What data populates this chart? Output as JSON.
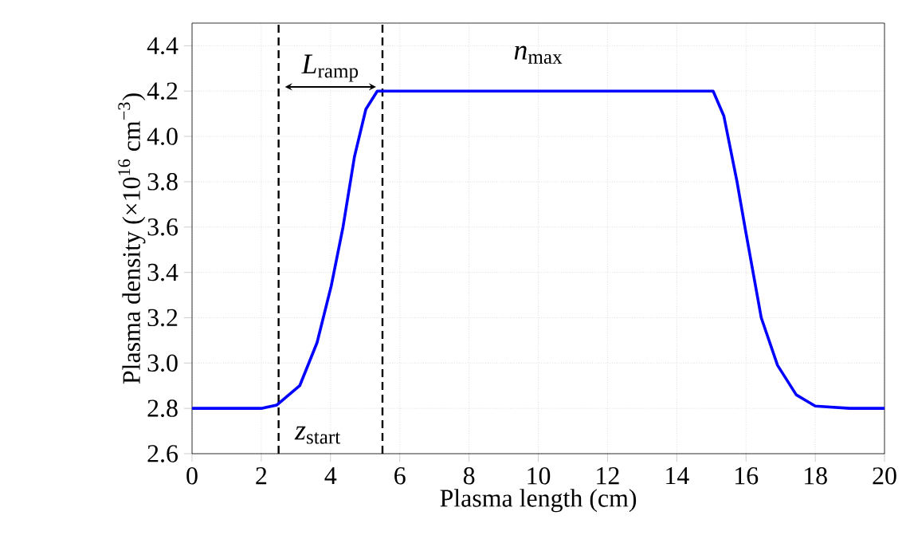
{
  "chart_data": {
    "type": "line",
    "xlabel": "Plasma length (cm)",
    "ylabel": "Plasma density (×10$^{16}$ cm$^{−3}$)",
    "x": [
      0,
      1,
      2,
      2.45,
      3.11,
      3.61,
      4.02,
      4.36,
      4.69,
      5.02,
      5.35,
      5.5,
      10,
      15.05,
      15.36,
      15.74,
      15.98,
      16.44,
      16.91,
      17.45,
      18.0,
      19,
      20
    ],
    "series": [
      {
        "color": "#0000ff",
        "values": [
          2.8,
          2.8,
          2.8,
          2.815,
          2.9,
          3.09,
          3.34,
          3.6,
          3.91,
          4.12,
          4.2,
          4.2,
          4.2,
          4.2,
          4.09,
          3.8,
          3.59,
          3.2,
          2.99,
          2.86,
          2.81,
          2.8,
          2.8
        ]
      }
    ],
    "xlim": [
      0,
      20
    ],
    "ylim": [
      2.6,
      4.5
    ],
    "xticks": [
      0,
      2,
      4,
      6,
      8,
      10,
      12,
      14,
      16,
      18,
      20
    ],
    "yticks": [
      2.6,
      2.8,
      {
        "value": 3.0,
        "label": "3.0"
      },
      3.2,
      3.4,
      3.6,
      3.8,
      {
        "value": 4.0,
        "label": "4.0"
      },
      4.2,
      4.4
    ],
    "grid": true,
    "marker": "none",
    "line_style": "solid",
    "ref_lines": [
      {
        "axis": "x",
        "value": 2.5,
        "label": "*z*$_{start}$",
        "color": "#000000",
        "line_style": "dashed"
      },
      {
        "axis": "x",
        "value": 5.5,
        "color": "#000000",
        "line_style": "dashed"
      }
    ],
    "annotations": [
      "*L*$_{ramp}$",
      "*n*$_{max}$"
    ]
  }
}
